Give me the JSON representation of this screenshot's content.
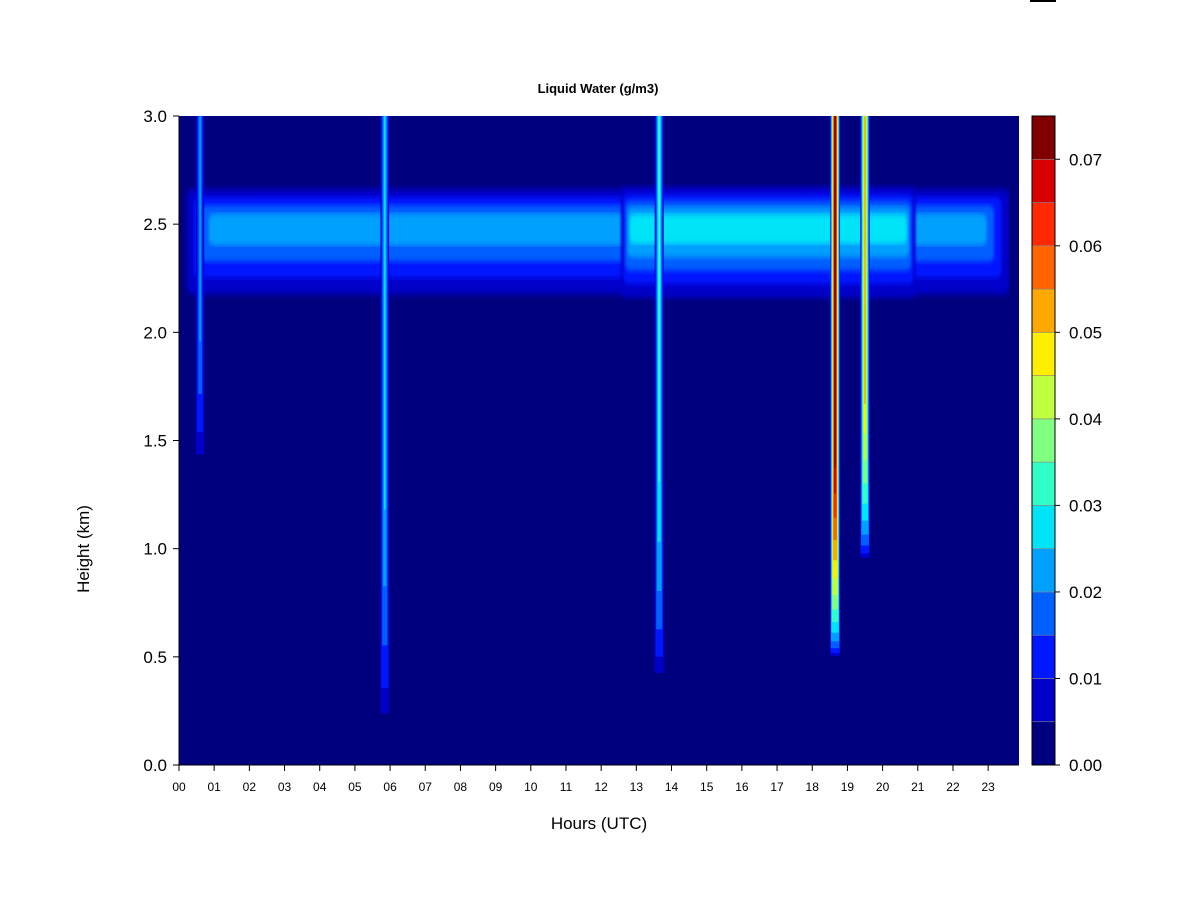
{
  "chart_data": {
    "type": "heatmap",
    "title": "Liquid Water (g/m3)",
    "xlabel": "Hours (UTC)",
    "ylabel": "Height (km)",
    "xlim": [
      0,
      24
    ],
    "ylim": [
      0.0,
      3.0
    ],
    "x_ticks": [
      "00",
      "01",
      "02",
      "03",
      "04",
      "05",
      "06",
      "07",
      "08",
      "09",
      "10",
      "11",
      "12",
      "13",
      "14",
      "15",
      "16",
      "17",
      "18",
      "19",
      "20",
      "21",
      "22",
      "23"
    ],
    "y_ticks": [
      "0.0",
      "0.5",
      "1.0",
      "1.5",
      "2.0",
      "2.5",
      "3.0"
    ],
    "colorbar": {
      "range": [
        0.0,
        0.075
      ],
      "ticks": [
        "0.00",
        "0.01",
        "0.02",
        "0.03",
        "0.04",
        "0.05",
        "0.06",
        "0.07"
      ],
      "levels": [
        0.0,
        0.005,
        0.01,
        0.015,
        0.02,
        0.025,
        0.03,
        0.035,
        0.04,
        0.045,
        0.05,
        0.055,
        0.06,
        0.065,
        0.07,
        0.075
      ],
      "colors": [
        "#00007f",
        "#0000c8",
        "#0018ff",
        "#0060ff",
        "#00a0ff",
        "#00e4f8",
        "#30ffc8",
        "#80ff80",
        "#c0ff40",
        "#ffee00",
        "#ffa800",
        "#ff6400",
        "#ff2800",
        "#d80000",
        "#800000"
      ]
    },
    "background_value": 0.0,
    "features": [
      {
        "type": "cloud_layer",
        "hours": [
          0.0,
          23.8
        ],
        "height_km": [
          2.1,
          2.7
        ],
        "peak_height_km": 2.5,
        "peak_value": 0.02
      },
      {
        "type": "cloud_layer",
        "hours": [
          12.5,
          21.0
        ],
        "height_km": [
          2.1,
          2.7
        ],
        "peak_height_km": 2.5,
        "peak_value": 0.025
      },
      {
        "type": "column",
        "hour": 0.6,
        "height_km": [
          1.4,
          3.0
        ],
        "peak_value": 0.02
      },
      {
        "type": "column",
        "hour": 5.85,
        "height_km": [
          0.2,
          3.0
        ],
        "peak_value": 0.025
      },
      {
        "type": "column",
        "hour": 13.65,
        "height_km": [
          0.4,
          3.0
        ],
        "peak_value": 0.03
      },
      {
        "type": "column",
        "hour": 18.65,
        "height_km": [
          0.5,
          3.0
        ],
        "peak_value": 0.07
      },
      {
        "type": "column",
        "hour": 19.5,
        "height_km": [
          0.95,
          3.0
        ],
        "peak_value": 0.05
      }
    ]
  }
}
